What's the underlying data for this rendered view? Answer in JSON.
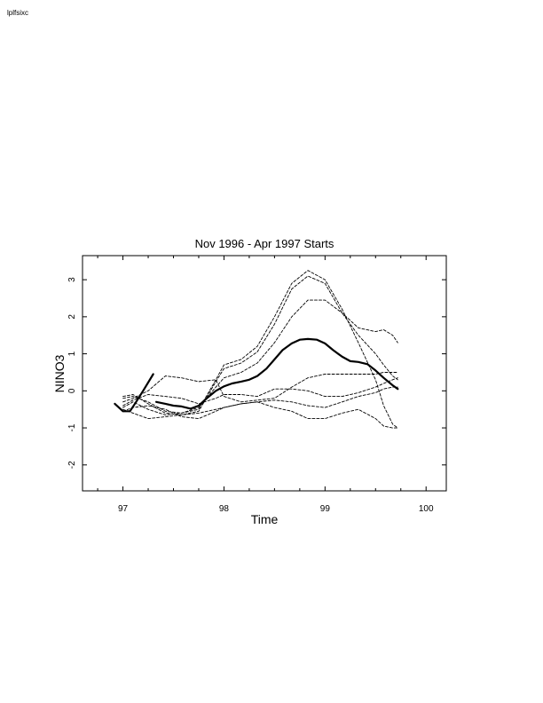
{
  "page": {
    "corner_label": "lplfsixc"
  },
  "chart_data": {
    "type": "line",
    "title": "Nov 1996 - Apr 1997 Starts",
    "xlabel": "Time",
    "ylabel": "NINO3",
    "xlim": [
      96.6,
      100.2
    ],
    "ylim": [
      -2.7,
      3.65
    ],
    "xticks": [
      97,
      98,
      99,
      100
    ],
    "xtick_labels": [
      "97",
      "98",
      "99",
      "100"
    ],
    "yticks": [
      -2,
      -1,
      0,
      1,
      2,
      3
    ],
    "ytick_labels": [
      "-2",
      "-1",
      "0",
      "1",
      "2",
      "3"
    ],
    "grid": false,
    "legend": "none",
    "series": [
      {
        "role": "observed",
        "style": "solid-thick",
        "x": [
          96.92,
          97.0,
          97.07,
          97.13,
          97.2,
          97.3
        ],
        "y": [
          -0.35,
          -0.55,
          -0.55,
          -0.3,
          0.0,
          0.45
        ]
      },
      {
        "role": "ensemble-mean",
        "style": "solid-thick",
        "x": [
          97.33,
          97.42,
          97.5,
          97.58,
          97.67,
          97.75,
          97.83,
          97.92,
          98.0,
          98.08,
          98.17,
          98.25,
          98.33,
          98.42,
          98.5,
          98.58,
          98.67,
          98.75,
          98.83,
          98.92,
          99.0,
          99.08,
          99.17,
          99.25,
          99.33,
          99.42,
          99.5,
          99.58,
          99.67,
          99.72
        ],
        "y": [
          -0.3,
          -0.35,
          -0.4,
          -0.42,
          -0.48,
          -0.4,
          -0.2,
          0.0,
          0.12,
          0.2,
          0.25,
          0.3,
          0.4,
          0.6,
          0.85,
          1.1,
          1.28,
          1.38,
          1.4,
          1.38,
          1.28,
          1.1,
          0.92,
          0.8,
          0.78,
          0.72,
          0.55,
          0.35,
          0.15,
          0.05
        ]
      },
      {
        "role": "member",
        "style": "dashed",
        "x": [
          97.0,
          97.1,
          97.25,
          97.42,
          97.58,
          97.75,
          97.92,
          98.0,
          98.17,
          98.33,
          98.5,
          98.67,
          98.83,
          99.0,
          99.17,
          99.33,
          99.5,
          99.58,
          99.67,
          99.72
        ],
        "y": [
          -0.2,
          -0.15,
          -0.3,
          -0.55,
          -0.6,
          -0.5,
          0.3,
          0.7,
          0.85,
          1.2,
          2.0,
          2.9,
          3.25,
          3.0,
          2.2,
          1.3,
          0.3,
          -0.4,
          -0.9,
          -1.0
        ]
      },
      {
        "role": "member",
        "style": "dashed",
        "x": [
          97.0,
          97.1,
          97.25,
          97.42,
          97.58,
          97.75,
          97.92,
          98.0,
          98.17,
          98.33,
          98.5,
          98.67,
          98.83,
          99.0,
          99.17,
          99.33,
          99.5,
          99.58,
          99.67,
          99.72
        ],
        "y": [
          -0.15,
          -0.1,
          -0.35,
          -0.6,
          -0.65,
          -0.55,
          0.25,
          0.6,
          0.75,
          1.05,
          1.8,
          2.75,
          3.1,
          2.9,
          2.1,
          1.5,
          1.0,
          0.7,
          0.4,
          0.3
        ]
      },
      {
        "role": "member",
        "style": "dashed",
        "x": [
          97.0,
          97.1,
          97.25,
          97.42,
          97.58,
          97.75,
          97.92,
          98.0,
          98.17,
          98.33,
          98.5,
          98.67,
          98.83,
          99.0,
          99.17,
          99.33,
          99.5,
          99.58,
          99.67,
          99.72
        ],
        "y": [
          -0.45,
          -0.3,
          -0.5,
          -0.65,
          -0.6,
          -0.45,
          0.1,
          0.35,
          0.5,
          0.75,
          1.3,
          2.0,
          2.45,
          2.45,
          2.1,
          1.7,
          1.6,
          1.65,
          1.5,
          1.3
        ]
      },
      {
        "role": "member",
        "style": "dashed",
        "x": [
          97.0,
          97.1,
          97.25,
          97.42,
          97.58,
          97.75,
          97.92,
          98.0,
          98.17,
          98.33,
          98.5,
          98.67,
          98.83,
          99.0,
          99.17,
          99.33,
          99.5,
          99.58,
          99.67,
          99.72
        ],
        "y": [
          -0.3,
          -0.2,
          0.0,
          0.4,
          0.35,
          0.25,
          0.3,
          -0.15,
          -0.3,
          -0.25,
          -0.2,
          0.1,
          0.35,
          0.45,
          0.45,
          0.45,
          0.45,
          0.5,
          0.5,
          0.5
        ]
      },
      {
        "role": "member",
        "style": "dashed",
        "x": [
          97.0,
          97.1,
          97.25,
          97.42,
          97.58,
          97.75,
          97.92,
          98.0,
          98.17,
          98.33,
          98.5,
          98.67,
          98.83,
          99.0,
          99.17,
          99.33,
          99.5,
          99.58,
          99.67,
          99.72
        ],
        "y": [
          -0.4,
          -0.25,
          -0.1,
          -0.15,
          -0.2,
          -0.35,
          -0.2,
          -0.1,
          -0.1,
          -0.15,
          0.05,
          0.05,
          0.0,
          -0.15,
          -0.15,
          -0.05,
          0.1,
          0.2,
          0.3,
          0.35
        ]
      },
      {
        "role": "member",
        "style": "dashed",
        "x": [
          97.0,
          97.1,
          97.25,
          97.42,
          97.58,
          97.75,
          97.92,
          98.0,
          98.17,
          98.33,
          98.5,
          98.67,
          98.83,
          99.0,
          99.17,
          99.33,
          99.5,
          99.58,
          99.67,
          99.72
        ],
        "y": [
          -0.5,
          -0.6,
          -0.75,
          -0.7,
          -0.65,
          -0.6,
          -0.5,
          -0.45,
          -0.35,
          -0.3,
          -0.45,
          -0.55,
          -0.75,
          -0.75,
          -0.6,
          -0.5,
          -0.75,
          -0.95,
          -1.0,
          -1.0
        ]
      },
      {
        "role": "member",
        "style": "dashed",
        "x": [
          97.0,
          97.1,
          97.25,
          97.42,
          97.58,
          97.75,
          97.92,
          98.0,
          98.17,
          98.33,
          98.5,
          98.67,
          98.83,
          99.0,
          99.17,
          99.33,
          99.5,
          99.58,
          99.67,
          99.72
        ],
        "y": [
          -0.55,
          -0.45,
          -0.4,
          -0.5,
          -0.7,
          -0.75,
          -0.55,
          -0.45,
          -0.35,
          -0.3,
          -0.25,
          -0.3,
          -0.4,
          -0.45,
          -0.3,
          -0.15,
          -0.05,
          0.05,
          0.1,
          0.1
        ]
      }
    ]
  }
}
